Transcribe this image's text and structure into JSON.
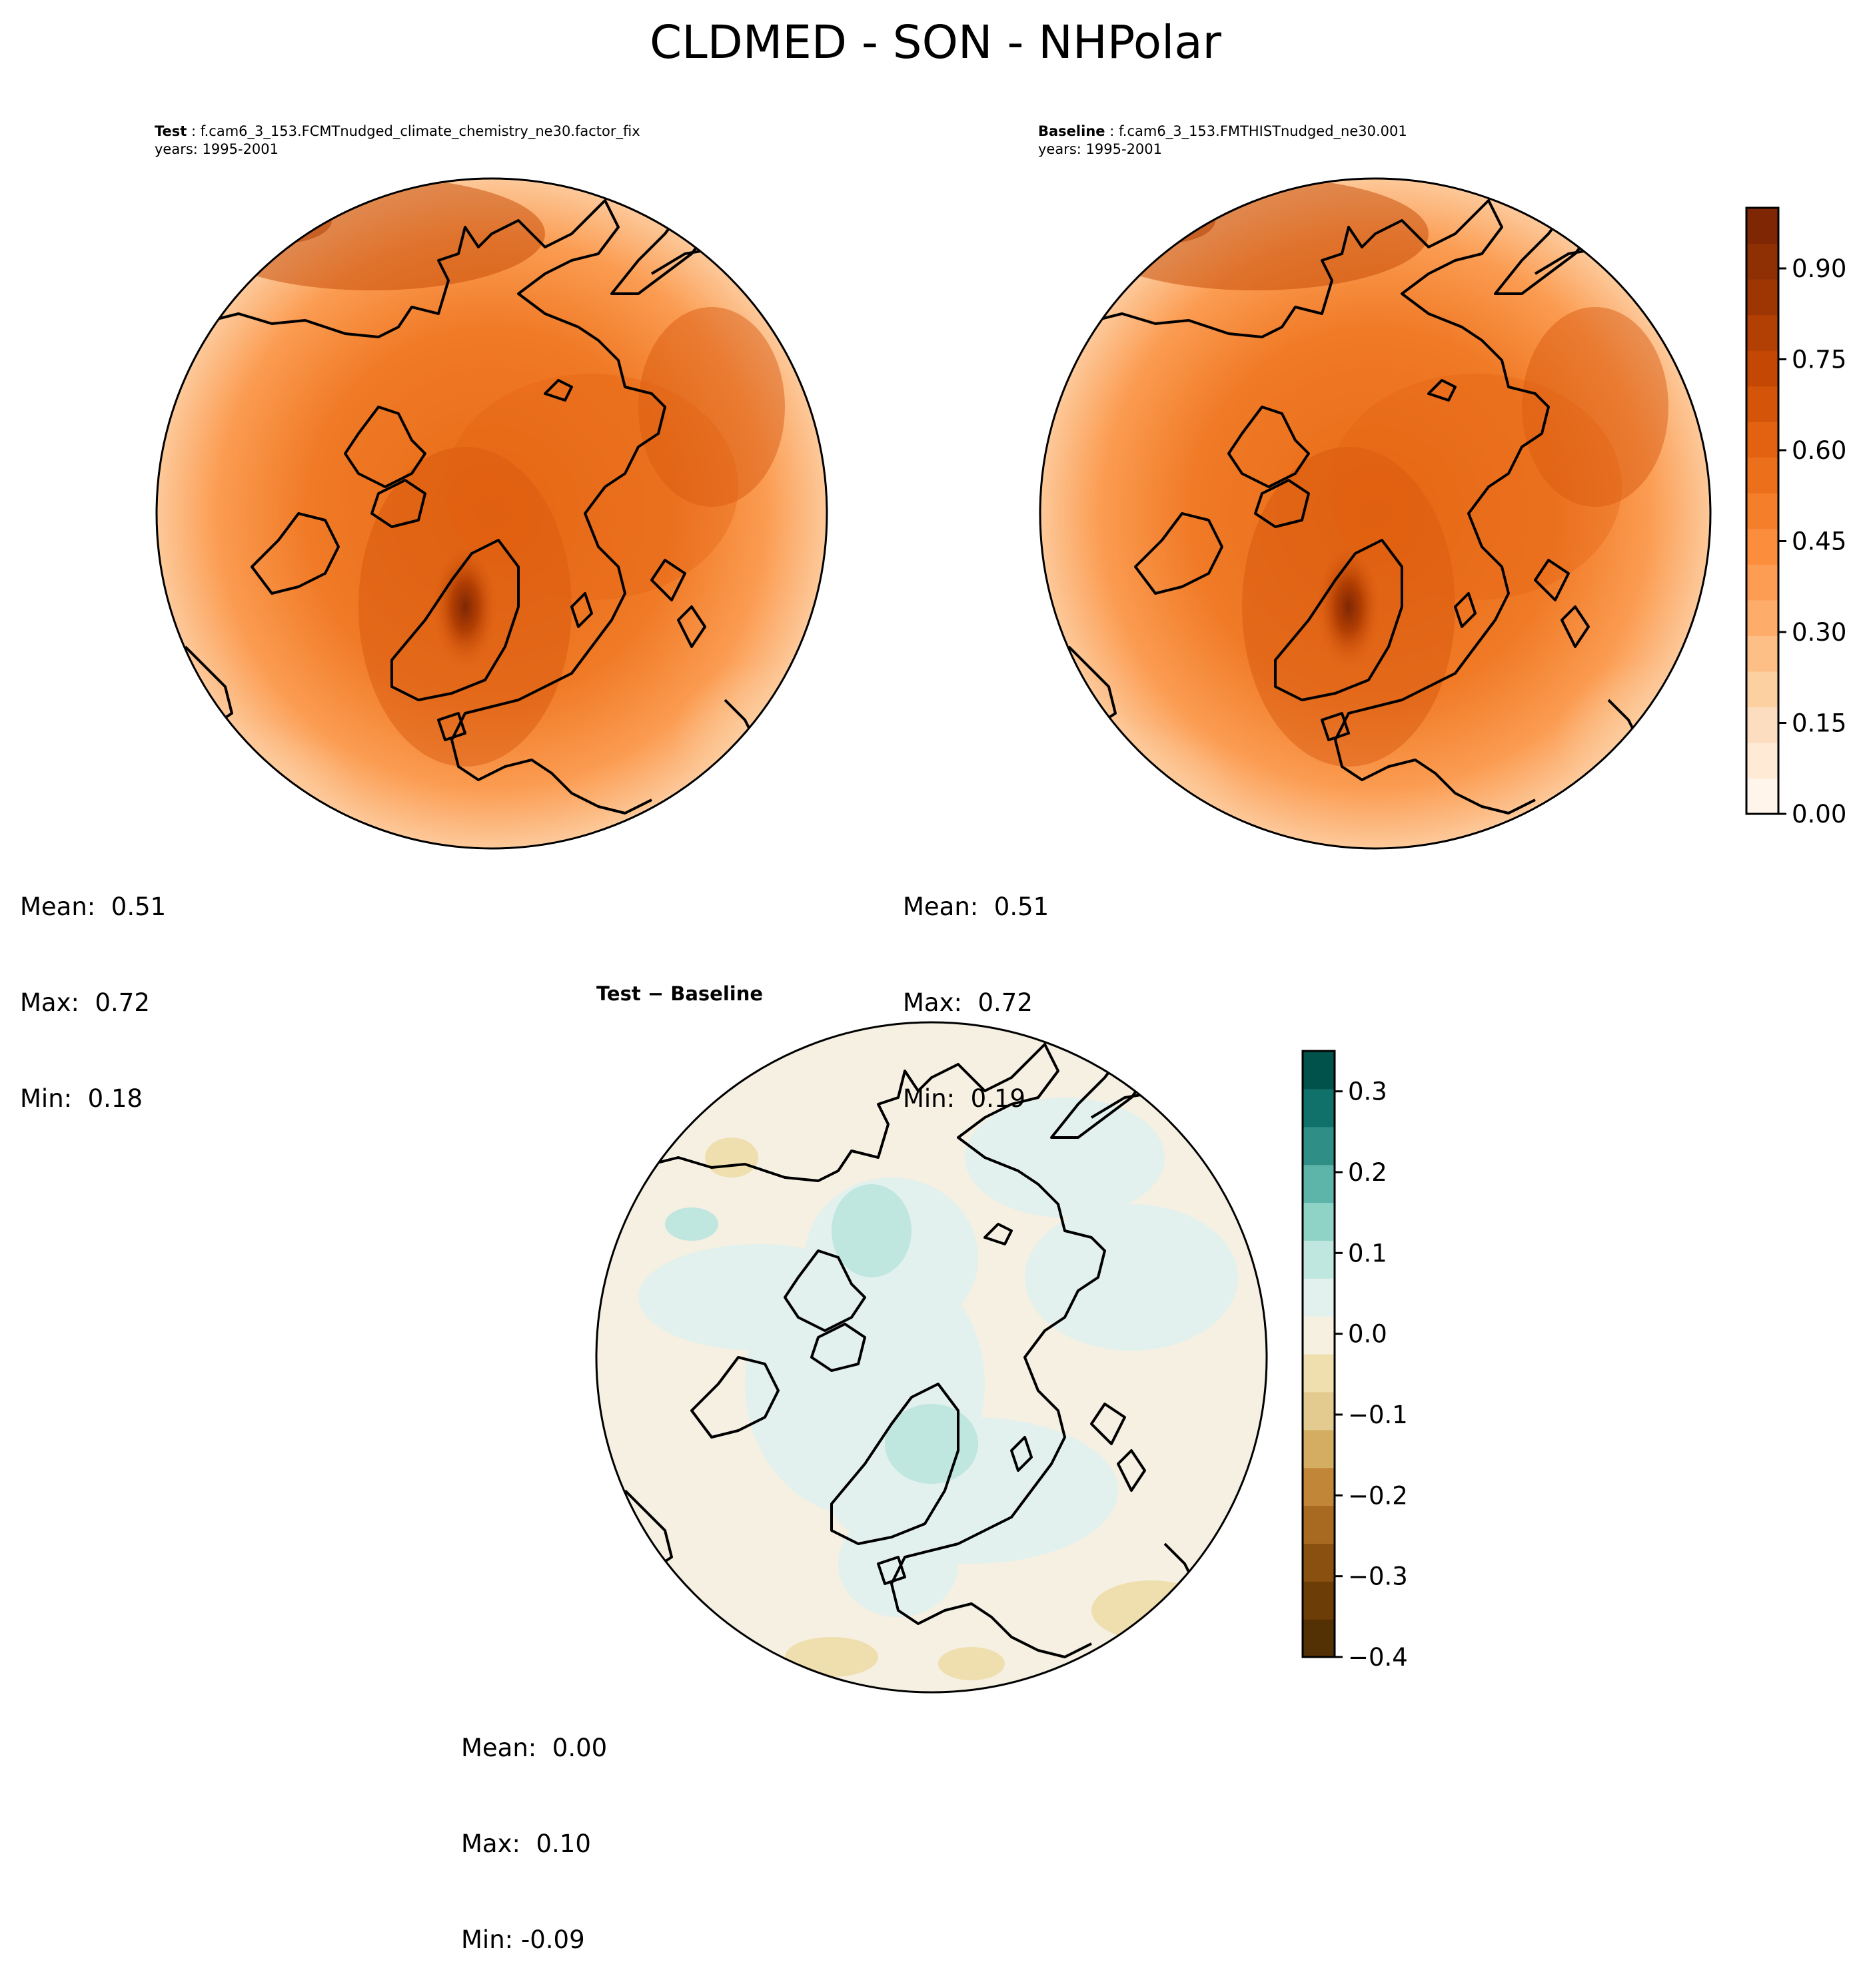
{
  "title": "CLDMED - SON - NHPolar",
  "panels": [
    {
      "header_bold": "Test",
      "header_rest": " : f.cam6_3_153.FCMTnudged_climate_chemistry_ne30.factor_fix",
      "years": "years: 1995-2001",
      "stats": {
        "mean": "Mean:  0.51",
        "max": "Max:  0.72",
        "min": "Min:  0.18"
      }
    },
    {
      "header_bold": "Baseline",
      "header_rest": " : f.cam6_3_153.FMTHISTnudged_ne30.001",
      "years": "years: 1995-2001",
      "stats": {
        "mean": "Mean:  0.51",
        "max": "Max:  0.72",
        "min": "Min:  0.19"
      }
    },
    {
      "header": "Test − Baseline",
      "stats": {
        "mean": "Mean:  0.00",
        "max": "Max:  0.10",
        "min": "Min: -0.09"
      }
    }
  ],
  "colorbar_main": {
    "ticks": [
      "0.00",
      "0.15",
      "0.30",
      "0.45",
      "0.60",
      "0.75",
      "0.90"
    ],
    "tick_values": [
      0.0,
      0.15,
      0.3,
      0.45,
      0.6,
      0.75,
      0.9
    ],
    "range": [
      0.0,
      1.0
    ],
    "colors": [
      "#fff5eb",
      "#feead5",
      "#fdddbf",
      "#fdd0a2",
      "#fdbf86",
      "#fdac6a",
      "#fd9d53",
      "#fb8d3d",
      "#f57e2b",
      "#ec6f1b",
      "#e36212",
      "#d4540a",
      "#c44704",
      "#b23f03",
      "#9e3603",
      "#8f3004",
      "#7f2704"
    ]
  },
  "colorbar_diff": {
    "ticks": [
      "0.3",
      "0.2",
      "0.1",
      "0.0",
      "−0.1",
      "−0.2",
      "−0.3",
      "−0.4"
    ],
    "tick_values": [
      0.3,
      0.2,
      0.1,
      0.0,
      -0.1,
      -0.2,
      -0.3,
      -0.4
    ],
    "range": [
      -0.4,
      0.35
    ],
    "colors": [
      "#543005",
      "#6d3d07",
      "#8a500f",
      "#a86a21",
      "#c18638",
      "#d4ad62",
      "#e3ca8e",
      "#efdeae",
      "#f5f0e0",
      "#e2f1ee",
      "#bfe6df",
      "#8fd3c6",
      "#5db4a8",
      "#2f8f86",
      "#10716a",
      "#01524a"
    ]
  }
}
